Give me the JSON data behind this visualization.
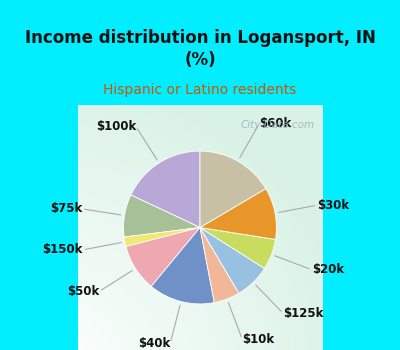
{
  "title": "Income distribution in Logansport, IN\n(%)",
  "subtitle": "Hispanic or Latino residents",
  "title_color": "#111111",
  "subtitle_color": "#cc5500",
  "bg_cyan": "#00eeff",
  "bg_chart_color": "#d8f0e8",
  "watermark": "City-Data.com",
  "labels": [
    "$100k",
    "$75k",
    "$150k",
    "$50k",
    "$40k",
    "$10k",
    "$125k",
    "$20k",
    "$30k",
    "$60k"
  ],
  "values": [
    18.0,
    9.0,
    2.0,
    10.0,
    14.0,
    5.5,
    7.5,
    6.5,
    11.0,
    16.5
  ],
  "colors": [
    "#b8a8d8",
    "#a8c098",
    "#f0e870",
    "#f0a8b0",
    "#7090c8",
    "#f0b898",
    "#98c0e0",
    "#c8dc60",
    "#e8952a",
    "#c8c0a4"
  ],
  "label_fontsize": 8.5,
  "startangle": 90,
  "title_fontsize": 12,
  "subtitle_fontsize": 10
}
